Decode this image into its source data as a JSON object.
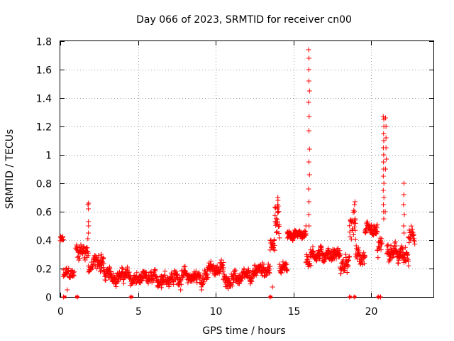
{
  "chart_data": {
    "type": "scatter",
    "title": "Day 066 of 2023, SRMTID for receiver cn00",
    "xlabel": "GPS time / hours",
    "ylabel": "SRMTID / TECUs",
    "xlim": [
      0,
      24
    ],
    "ylim": [
      0,
      1.8
    ],
    "xticks": [
      0,
      5,
      10,
      15,
      20
    ],
    "xtick_labels": [
      "0",
      "5",
      "10",
      "15",
      "20"
    ],
    "yticks": [
      0,
      0.2,
      0.4,
      0.6,
      0.8,
      1.0,
      1.2,
      1.4,
      1.6,
      1.8
    ],
    "ytick_labels": [
      "0",
      "0.2",
      "0.4",
      "0.6",
      "0.8",
      "1",
      "1.2",
      "1.4",
      "1.6",
      "1.8"
    ],
    "grid": true,
    "marker": "plus",
    "color": "#ff0000",
    "segments": [
      {
        "x0": 0.0,
        "x1": 0.2,
        "base": 0.4,
        "spread": 0.04,
        "density": 5
      },
      {
        "x0": 0.2,
        "x1": 0.9,
        "base": 0.16,
        "spread": 0.06,
        "density": 4
      },
      {
        "x0": 1.0,
        "x1": 1.8,
        "base": 0.33,
        "spread": 0.08,
        "density": 5
      },
      {
        "x0": 1.8,
        "x1": 2.1,
        "base": 0.2,
        "spread": 0.06,
        "density": 4
      },
      {
        "x0": 2.1,
        "x1": 2.8,
        "base": 0.24,
        "spread": 0.08,
        "density": 5
      },
      {
        "x0": 2.8,
        "x1": 4.5,
        "base": 0.15,
        "spread": 0.06,
        "density": 5
      },
      {
        "x0": 4.5,
        "x1": 6.5,
        "base": 0.12,
        "spread": 0.06,
        "density": 5
      },
      {
        "x0": 6.5,
        "x1": 9.5,
        "base": 0.14,
        "spread": 0.07,
        "density": 5
      },
      {
        "x0": 9.5,
        "x1": 10.5,
        "base": 0.2,
        "spread": 0.06,
        "density": 5
      },
      {
        "x0": 10.5,
        "x1": 12.5,
        "base": 0.13,
        "spread": 0.06,
        "density": 5
      },
      {
        "x0": 12.5,
        "x1": 13.5,
        "base": 0.2,
        "spread": 0.06,
        "density": 5
      },
      {
        "x0": 13.5,
        "x1": 13.8,
        "base": 0.35,
        "spread": 0.06,
        "density": 5
      },
      {
        "x0": 13.8,
        "x1": 14.1,
        "base": 0.55,
        "spread": 0.15,
        "density": 6
      },
      {
        "x0": 14.1,
        "x1": 14.6,
        "base": 0.2,
        "spread": 0.05,
        "density": 5
      },
      {
        "x0": 14.6,
        "x1": 15.8,
        "base": 0.44,
        "spread": 0.04,
        "density": 7
      },
      {
        "x0": 15.8,
        "x1": 16.2,
        "base": 0.3,
        "spread": 0.1,
        "density": 5
      },
      {
        "x0": 16.2,
        "x1": 18.0,
        "base": 0.3,
        "spread": 0.06,
        "density": 6
      },
      {
        "x0": 18.0,
        "x1": 18.6,
        "base": 0.22,
        "spread": 0.07,
        "density": 5
      },
      {
        "x0": 18.6,
        "x1": 19.0,
        "base": 0.5,
        "spread": 0.15,
        "density": 5
      },
      {
        "x0": 19.0,
        "x1": 19.6,
        "base": 0.28,
        "spread": 0.08,
        "density": 5
      },
      {
        "x0": 19.6,
        "x1": 20.4,
        "base": 0.45,
        "spread": 0.06,
        "density": 6
      },
      {
        "x0": 20.4,
        "x1": 20.7,
        "base": 0.35,
        "spread": 0.1,
        "density": 5
      },
      {
        "x0": 21.0,
        "x1": 22.0,
        "base": 0.3,
        "spread": 0.08,
        "density": 6
      },
      {
        "x0": 22.0,
        "x1": 22.4,
        "base": 0.25,
        "spread": 0.1,
        "density": 5
      },
      {
        "x0": 22.4,
        "x1": 22.8,
        "base": 0.4,
        "spread": 0.1,
        "density": 5
      }
    ],
    "spikes": [
      {
        "x": 1.8,
        "ys": [
          0.65,
          0.62,
          0.66,
          0.5,
          0.45,
          0.53,
          0.41
        ]
      },
      {
        "x": 2.65,
        "ys": [
          0.3,
          0.28
        ]
      },
      {
        "x": 14.0,
        "ys": [
          0.65,
          0.7,
          0.68,
          0.6,
          0.62
        ]
      },
      {
        "x": 16.0,
        "ys": [
          1.74,
          1.68,
          1.6,
          1.52,
          1.45,
          1.37,
          1.27,
          1.17,
          1.04,
          0.95,
          0.86,
          0.76,
          0.67,
          0.58,
          0.5
        ]
      },
      {
        "x": 18.95,
        "ys": [
          0.67,
          0.65,
          0.6,
          0.55
        ]
      },
      {
        "x": 20.8,
        "ys": [
          1.27,
          1.25,
          1.2,
          1.15,
          1.1,
          1.05,
          1.0,
          0.95,
          0.9,
          0.85,
          0.8,
          0.75,
          0.7,
          0.65,
          0.6,
          0.55
        ]
      },
      {
        "x": 20.95,
        "ys": [
          1.26,
          1.2,
          1.12,
          1.05,
          0.97,
          0.9
        ]
      },
      {
        "x": 22.1,
        "ys": [
          0.8,
          0.72,
          0.65,
          0.58,
          0.5,
          0.45
        ]
      }
    ],
    "outliers": [
      {
        "x": 0.2,
        "y": 0.0
      },
      {
        "x": 0.45,
        "y": 0.05
      },
      {
        "x": 1.1,
        "y": 0.0
      },
      {
        "x": 4.55,
        "y": 0.0
      },
      {
        "x": 13.5,
        "y": 0.0
      },
      {
        "x": 13.65,
        "y": 0.07
      },
      {
        "x": 18.6,
        "y": 0.0
      },
      {
        "x": 18.9,
        "y": 0.0
      },
      {
        "x": 20.45,
        "y": 0.0
      },
      {
        "x": 20.6,
        "y": 0.0
      },
      {
        "x": 20.9,
        "y": 0.6
      },
      {
        "x": 15.8,
        "y": 0.5
      }
    ],
    "zero_markers": [
      0.3,
      1.05,
      1.1,
      4.55,
      4.6,
      13.5,
      13.55,
      18.65,
      18.95,
      20.45,
      20.55
    ]
  }
}
